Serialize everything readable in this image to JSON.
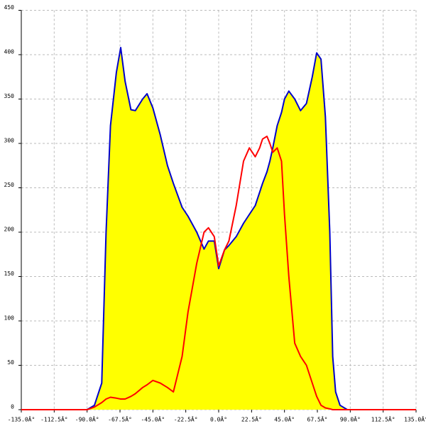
{
  "chart_data": {
    "type": "line",
    "x": [
      -135,
      -90,
      -85,
      -80,
      -77,
      -74,
      -70,
      -67,
      -64,
      -60,
      -57,
      -52,
      -49,
      -45,
      -40,
      -35,
      -31,
      -25,
      -21,
      -15,
      -10,
      -7,
      -3,
      0,
      4,
      7,
      12,
      17,
      21,
      25,
      28,
      30,
      33,
      35,
      37,
      40,
      43,
      45,
      48,
      52,
      56,
      60,
      64,
      67,
      70,
      73,
      76,
      78,
      80,
      83,
      88,
      135
    ],
    "series": [
      {
        "name": "blue",
        "color": "#0000cc",
        "fill": "#ffff00",
        "values": [
          0,
          0,
          5,
          30,
          200,
          320,
          380,
          408,
          370,
          338,
          337,
          350,
          356,
          340,
          310,
          275,
          255,
          228,
          218,
          200,
          181,
          190,
          190,
          159,
          180,
          185,
          195,
          210,
          220,
          230,
          245,
          255,
          268,
          280,
          295,
          320,
          335,
          350,
          359,
          350,
          337,
          345,
          375,
          402,
          395,
          330,
          200,
          60,
          20,
          5,
          0,
          0
        ]
      },
      {
        "name": "red",
        "color": "#ff0000",
        "values": [
          0,
          0,
          3,
          8,
          12,
          14,
          13,
          12,
          12,
          15,
          18,
          25,
          28,
          33,
          30,
          25,
          20,
          60,
          110,
          165,
          200,
          205,
          195,
          162,
          180,
          190,
          230,
          280,
          295,
          285,
          295,
          305,
          308,
          300,
          290,
          295,
          280,
          220,
          150,
          75,
          60,
          50,
          30,
          15,
          5,
          2,
          1,
          0,
          0,
          0,
          0,
          0
        ]
      }
    ],
    "xlim": [
      -135,
      135
    ],
    "xticks": [
      {
        "value": -135,
        "label": "-135.0Â°"
      },
      {
        "value": -112.5,
        "label": "-112.5Â°"
      },
      {
        "value": -90,
        "label": "-90.0Â°"
      },
      {
        "value": -67.5,
        "label": "-67.5Â°"
      },
      {
        "value": -45,
        "label": "-45.0Â°"
      },
      {
        "value": -22.5,
        "label": "-22.5Â°"
      },
      {
        "value": 0,
        "label": "0.0Â°"
      },
      {
        "value": 22.5,
        "label": "22.5Â°"
      },
      {
        "value": 45,
        "label": "45.0Â°"
      },
      {
        "value": 67.5,
        "label": "67.5Â°"
      },
      {
        "value": 90,
        "label": "90.0Â°"
      },
      {
        "value": 112.5,
        "label": "112.5Â°"
      },
      {
        "value": 135,
        "label": "135.0Â°"
      }
    ],
    "ylim": [
      0,
      450
    ],
    "yticks": [
      0,
      50,
      100,
      150,
      200,
      250,
      300,
      350,
      400,
      450
    ],
    "grid": true
  }
}
